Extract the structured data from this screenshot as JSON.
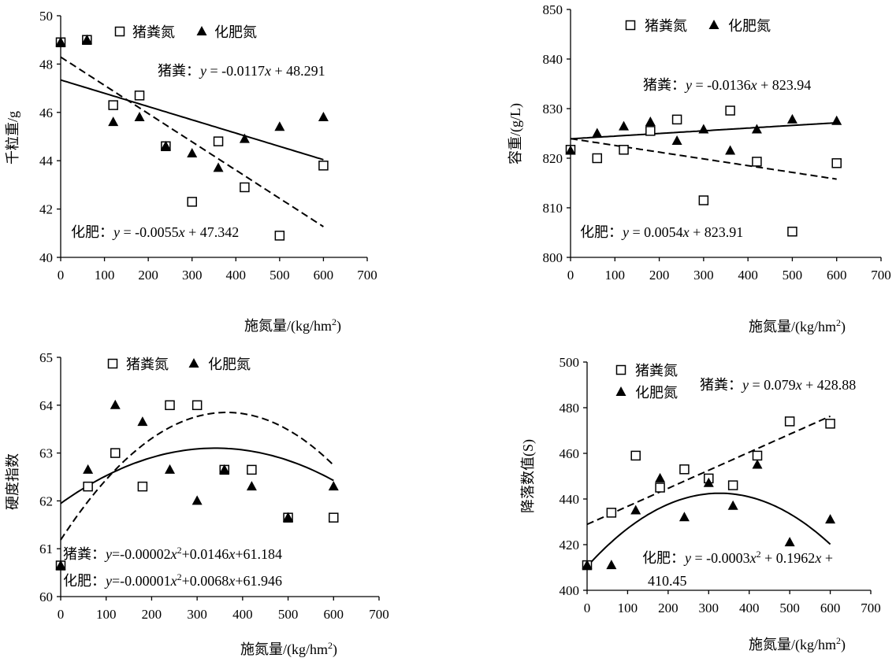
{
  "chart_data": [
    {
      "id": "tkw",
      "type": "scatter",
      "xlim": [
        0,
        700
      ],
      "ylim": [
        40,
        50
      ],
      "xticks": [
        0,
        100,
        200,
        300,
        400,
        500,
        600,
        700
      ],
      "yticks": [
        40,
        42,
        44,
        46,
        48,
        50
      ],
      "xlabel": "施氮量/(kg/hm²)",
      "ylabel": "千粒重/g",
      "legend": [
        "猪粪氮",
        "化肥氮"
      ],
      "series": [
        {
          "name": "猪粪氮",
          "marker": "square",
          "x": [
            0,
            60,
            120,
            180,
            240,
            300,
            360,
            420,
            500,
            600
          ],
          "y": [
            48.9,
            49.0,
            46.3,
            46.7,
            44.6,
            42.3,
            44.8,
            42.9,
            40.9,
            43.8
          ]
        },
        {
          "name": "化肥氮",
          "marker": "triangle",
          "x": [
            0,
            60,
            120,
            180,
            240,
            300,
            360,
            420,
            500,
            600
          ],
          "y": [
            48.9,
            49.0,
            45.6,
            45.8,
            44.6,
            44.3,
            43.7,
            44.9,
            45.4,
            45.8
          ]
        }
      ],
      "fits": [
        {
          "style": "solid",
          "coef": [
            47.342,
            -0.0055
          ],
          "x_range": [
            0,
            600
          ]
        },
        {
          "style": "dashed",
          "coef": [
            48.291,
            -0.0117
          ],
          "x_range": [
            0,
            600
          ]
        }
      ],
      "equations": [
        {
          "prefix": "猪粪：",
          "y": "y",
          "eq": " = -0.0117",
          "x": "x",
          "rest": " + 48.291"
        },
        {
          "prefix": "化肥：",
          "y": "y",
          "eq": " =  -0.0055",
          "x": "x",
          "rest": " + 47.342"
        }
      ]
    },
    {
      "id": "volume",
      "type": "scatter",
      "xlim": [
        0,
        700
      ],
      "ylim": [
        800,
        850
      ],
      "xticks": [
        0,
        100,
        200,
        300,
        400,
        500,
        600,
        700
      ],
      "yticks": [
        800,
        810,
        820,
        830,
        840,
        850
      ],
      "xlabel": "施氮量/(kg/hm²)",
      "ylabel": "容重/(g/L)",
      "legend": [
        "猪粪氮",
        "化肥氮"
      ],
      "series": [
        {
          "name": "猪粪氮",
          "marker": "square",
          "x": [
            0,
            60,
            120,
            180,
            240,
            300,
            360,
            420,
            500,
            600
          ],
          "y": [
            821.7,
            820.0,
            821.7,
            825.5,
            827.8,
            811.5,
            829.6,
            819.3,
            805.2,
            819.0
          ]
        },
        {
          "name": "化肥氮",
          "marker": "triangle",
          "x": [
            0,
            60,
            120,
            180,
            240,
            300,
            360,
            420,
            500,
            600
          ],
          "y": [
            821.5,
            825.0,
            826.4,
            827.3,
            823.5,
            825.8,
            821.5,
            825.8,
            827.8,
            827.5
          ]
        }
      ],
      "fits": [
        {
          "style": "solid",
          "coef": [
            823.91,
            0.0054
          ],
          "x_range": [
            0,
            600
          ]
        },
        {
          "style": "dashed",
          "coef": [
            823.94,
            -0.0136
          ],
          "x_range": [
            0,
            600
          ]
        }
      ],
      "equations": [
        {
          "prefix": "猪粪：",
          "y": "y",
          "eq": " = -0.0136",
          "x": "x",
          "rest": " + 823.94"
        },
        {
          "prefix": "化肥：",
          "y": "y",
          "eq": " = 0.0054",
          "x": "x",
          "rest": " + 823.91"
        }
      ]
    },
    {
      "id": "hardness",
      "type": "scatter",
      "xlim": [
        0,
        700
      ],
      "ylim": [
        60,
        65
      ],
      "xticks": [
        0,
        100,
        200,
        300,
        400,
        500,
        600,
        700
      ],
      "yticks": [
        60,
        61,
        62,
        63,
        64,
        65
      ],
      "xlabel": "施氮量/(kg/hm²)",
      "ylabel": "硬度指数",
      "legend": [
        "猪粪氮",
        "化肥氮"
      ],
      "series": [
        {
          "name": "猪粪氮",
          "marker": "square",
          "x": [
            0,
            60,
            120,
            180,
            240,
            300,
            360,
            420,
            500,
            600
          ],
          "y": [
            60.65,
            62.3,
            63.0,
            62.3,
            64.0,
            64.0,
            62.65,
            62.65,
            61.65,
            61.65
          ]
        },
        {
          "name": "化肥氮",
          "marker": "triangle",
          "x": [
            0,
            60,
            120,
            180,
            240,
            300,
            360,
            420,
            500,
            600
          ],
          "y": [
            60.65,
            62.65,
            64.0,
            63.65,
            62.65,
            62.0,
            62.65,
            62.3,
            61.65,
            62.3
          ]
        }
      ],
      "fits": [
        {
          "style": "solid",
          "coef": [
            61.946,
            0.0068,
            -1e-05
          ],
          "x_range": [
            0,
            600
          ]
        },
        {
          "style": "dashed",
          "coef": [
            61.184,
            0.0146,
            -2e-05
          ],
          "x_range": [
            0,
            600
          ]
        }
      ],
      "equations": [
        {
          "prefix": "猪粪：",
          "y": "y",
          "eq": "=-0.00002",
          "x": "x",
          "sup": "2",
          "rest": "+0.0146",
          "x2": "x",
          "rest2": "+61.184"
        },
        {
          "prefix": "化肥：",
          "y": "y",
          "eq": "=-0.00001",
          "x": "x",
          "sup": "2",
          "rest": "+0.0068",
          "x2": "x",
          "rest2": "+61.946"
        }
      ]
    },
    {
      "id": "falling",
      "type": "scatter",
      "xlim": [
        0,
        700
      ],
      "ylim": [
        400,
        500
      ],
      "xticks": [
        0,
        100,
        200,
        300,
        400,
        500,
        600,
        700
      ],
      "yticks": [
        400,
        420,
        440,
        460,
        480,
        500
      ],
      "xlabel": "施氮量/(kg/hm²)",
      "ylabel": "降落数值(S)",
      "legend": [
        "猪粪氮",
        "化肥氮"
      ],
      "series": [
        {
          "name": "猪粪氮",
          "marker": "square",
          "x": [
            0,
            60,
            120,
            180,
            240,
            300,
            360,
            420,
            500,
            600
          ],
          "y": [
            411,
            434,
            459,
            445,
            453,
            449,
            446,
            459,
            474,
            473
          ]
        },
        {
          "name": "化肥氮",
          "marker": "triangle",
          "x": [
            0,
            60,
            120,
            180,
            240,
            300,
            360,
            420,
            500,
            600
          ],
          "y": [
            411,
            411,
            435,
            449,
            432,
            447,
            437,
            455,
            421,
            431
          ]
        }
      ],
      "fits": [
        {
          "style": "solid",
          "coef": [
            410.45,
            0.1962,
            -0.0003
          ],
          "x_range": [
            0,
            600
          ]
        },
        {
          "style": "dashed",
          "coef": [
            428.88,
            0.079
          ],
          "x_range": [
            0,
            600
          ]
        }
      ],
      "equations": [
        {
          "prefix": "猪粪：",
          "y": "y",
          "eq": " = 0.079",
          "x": "x",
          "rest": " + 428.88"
        },
        {
          "prefix": "化肥：",
          "y": "y",
          "eq": " = -0.0003",
          "x": "x",
          "sup": "2",
          "rest": " + 0.1962",
          "x2": "x",
          "rest2": " +"
        },
        {
          "line2": "410.45"
        }
      ]
    }
  ]
}
